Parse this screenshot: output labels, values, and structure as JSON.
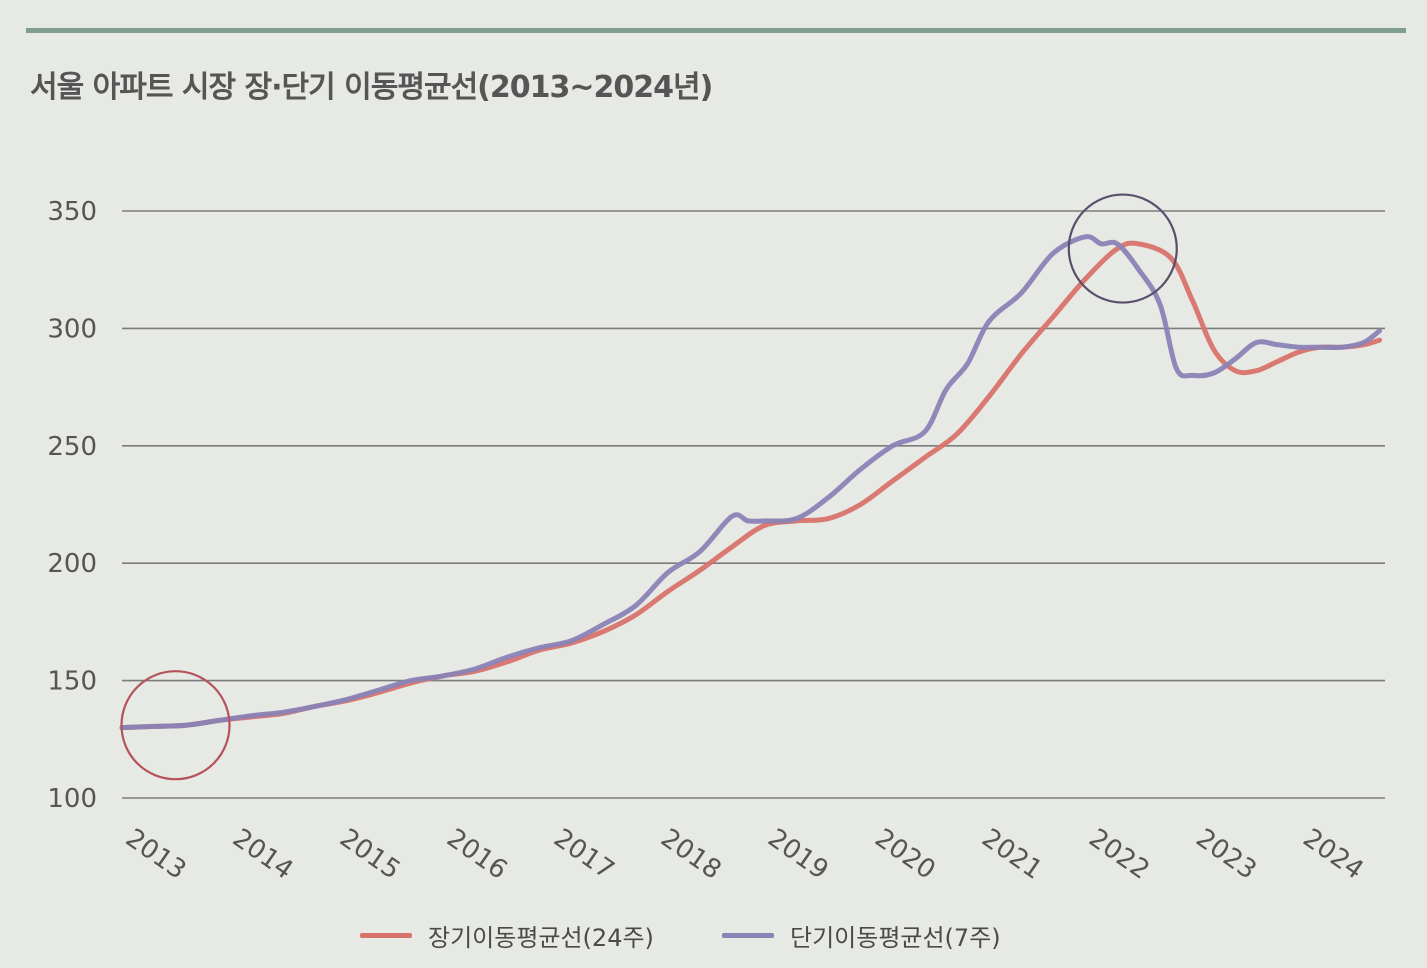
{
  "chart_data": {
    "type": "line",
    "title": "서울 아파트 시장 장·단기 이동평균선(2013~2024년)",
    "xlabel": "",
    "ylabel": "",
    "xlim": [
      2013,
      2024.8
    ],
    "ylim": [
      100,
      350
    ],
    "yticks": [
      100,
      150,
      200,
      250,
      300,
      350
    ],
    "xtick_labels": [
      "2013",
      "2014",
      "2015",
      "2016",
      "2017",
      "2018",
      "2019",
      "2020",
      "2021",
      "2022",
      "2023",
      "2024"
    ],
    "grid": "horizontal",
    "legend_position": "bottom-center",
    "annotations": [
      {
        "type": "circle",
        "x": 2013.5,
        "y": 131,
        "color": "#b5535a"
      },
      {
        "type": "circle",
        "x": 2022.35,
        "y": 334,
        "color": "#5a4f6a"
      }
    ],
    "series": [
      {
        "name": "장기이동평균선(24주)",
        "color": "#d8736a",
        "x": [
          2013.0,
          2013.3,
          2013.6,
          2013.9,
          2014.2,
          2014.5,
          2014.8,
          2015.1,
          2015.4,
          2015.7,
          2016.0,
          2016.3,
          2016.6,
          2016.9,
          2017.2,
          2017.5,
          2017.8,
          2018.1,
          2018.4,
          2018.7,
          2019.0,
          2019.3,
          2019.6,
          2019.9,
          2020.2,
          2020.5,
          2020.8,
          2021.1,
          2021.4,
          2021.7,
          2022.0,
          2022.3,
          2022.5,
          2022.8,
          2023.0,
          2023.2,
          2023.4,
          2023.6,
          2023.8,
          2024.0,
          2024.2,
          2024.4,
          2024.6,
          2024.75
        ],
        "y": [
          130,
          130.5,
          131,
          133,
          134.5,
          136,
          139,
          141.5,
          145,
          149,
          152,
          154,
          158,
          163,
          166,
          171,
          178,
          188,
          197,
          207,
          216,
          218,
          219,
          225,
          235,
          245,
          255,
          271,
          289,
          305,
          321,
          334,
          336,
          330,
          312,
          291,
          282,
          282,
          286,
          290,
          292,
          292,
          293,
          295
        ]
      },
      {
        "name": "단기이동평균선(7주)",
        "color": "#8a83b6",
        "x": [
          2013.0,
          2013.3,
          2013.6,
          2013.9,
          2014.2,
          2014.5,
          2014.8,
          2015.1,
          2015.4,
          2015.7,
          2016.0,
          2016.3,
          2016.6,
          2016.9,
          2017.2,
          2017.5,
          2017.8,
          2018.1,
          2018.4,
          2018.7,
          2018.85,
          2019.0,
          2019.3,
          2019.6,
          2019.9,
          2020.2,
          2020.5,
          2020.7,
          2020.9,
          2021.1,
          2021.4,
          2021.7,
          2022.0,
          2022.15,
          2022.3,
          2022.5,
          2022.7,
          2022.85,
          2023.0,
          2023.2,
          2023.4,
          2023.6,
          2023.8,
          2024.0,
          2024.2,
          2024.4,
          2024.6,
          2024.75
        ],
        "y": [
          130,
          130.5,
          131,
          133,
          135,
          136.5,
          139,
          142,
          146,
          150,
          152,
          155,
          160,
          164,
          167,
          174,
          182,
          196,
          205,
          220,
          218,
          218,
          219,
          228,
          240,
          250,
          256,
          274,
          285,
          303,
          315,
          332,
          339,
          336,
          336,
          325,
          310,
          283,
          280,
          281,
          287,
          294,
          293,
          292,
          292,
          292,
          294,
          299
        ]
      }
    ]
  }
}
